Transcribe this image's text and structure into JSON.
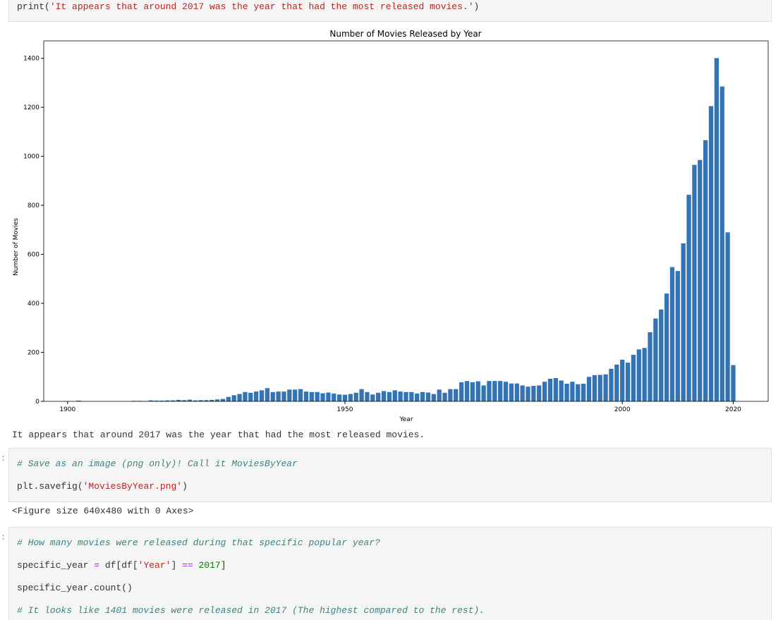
{
  "cells": [
    {
      "code": [
        [
          "print(",
          "'It appears that around 2017 was the year that had the most released movies.'",
          ")"
        ]
      ]
    },
    {
      "output": "It appears that around 2017 was the year that had the most released movies."
    },
    {
      "prompt": ":",
      "code": [
        [
          "# Save as an image (png only)! Call it MoviesByYear"
        ],
        [
          "plt.savefig(",
          "'MoviesByYear.png'",
          ")"
        ]
      ]
    },
    {
      "output": "<Figure size 640x480 with 0 Axes>"
    },
    {
      "prompt": ":",
      "code": [
        [
          "# How many movies were released during that specific popular year?"
        ],
        [
          "specific_year ",
          "=",
          " df[df[",
          "'Year'",
          "] ",
          "==",
          " 2017",
          "]"
        ],
        [
          "specific_year.count()"
        ],
        [
          "# It looks like 1401 movies were released in 2017 (The highest compared to the rest)."
        ]
      ]
    }
  ],
  "chart_data": {
    "type": "bar",
    "title": "Number of Movies Released by Year",
    "xlabel": "Year",
    "ylabel": "Number of Movies",
    "color": "#3274b5",
    "bar_width": 0.8,
    "x": [
      1902,
      1912,
      1913,
      1914,
      1915,
      1916,
      1917,
      1918,
      1919,
      1920,
      1921,
      1922,
      1923,
      1924,
      1925,
      1926,
      1927,
      1928,
      1929,
      1930,
      1931,
      1932,
      1933,
      1934,
      1935,
      1936,
      1937,
      1938,
      1939,
      1940,
      1941,
      1942,
      1943,
      1944,
      1945,
      1946,
      1947,
      1948,
      1949,
      1950,
      1951,
      1952,
      1953,
      1954,
      1955,
      1956,
      1957,
      1958,
      1959,
      1960,
      1961,
      1962,
      1963,
      1964,
      1965,
      1966,
      1967,
      1968,
      1969,
      1970,
      1971,
      1972,
      1973,
      1974,
      1975,
      1976,
      1977,
      1978,
      1979,
      1980,
      1981,
      1982,
      1983,
      1984,
      1985,
      1986,
      1987,
      1988,
      1989,
      1990,
      1991,
      1992,
      1993,
      1994,
      1995,
      1996,
      1997,
      1998,
      1999,
      2000,
      2001,
      2002,
      2003,
      2004,
      2005,
      2006,
      2007,
      2008,
      2009,
      2010,
      2011,
      2012,
      2013,
      2014,
      2015,
      2016,
      2017,
      2018,
      2019,
      2020
    ],
    "values": [
      3,
      2,
      2,
      1,
      4,
      3,
      3,
      4,
      4,
      6,
      5,
      7,
      4,
      5,
      5,
      6,
      8,
      10,
      18,
      25,
      30,
      38,
      35,
      40,
      45,
      54,
      38,
      40,
      40,
      48,
      48,
      50,
      40,
      38,
      38,
      33,
      36,
      32,
      28,
      27,
      30,
      35,
      50,
      38,
      28,
      35,
      42,
      38,
      45,
      40,
      38,
      38,
      32,
      38,
      36,
      30,
      48,
      35,
      50,
      50,
      78,
      83,
      78,
      82,
      65,
      83,
      83,
      83,
      80,
      73,
      73,
      65,
      60,
      63,
      65,
      80,
      92,
      95,
      85,
      72,
      80,
      70,
      72,
      100,
      107,
      108,
      110,
      133,
      150,
      170,
      158,
      190,
      212,
      218,
      282,
      338,
      375,
      440,
      548,
      532,
      645,
      843,
      965,
      985,
      1066,
      1205,
      1401,
      1285,
      690,
      148
    ],
    "xlim": [
      1895.7,
      2026.3
    ],
    "xticks": [
      1900,
      1950,
      2000,
      2020
    ],
    "ylim": [
      0,
      1471
    ],
    "yticks": [
      0,
      200,
      400,
      600,
      800,
      1000,
      1200,
      1400
    ]
  }
}
